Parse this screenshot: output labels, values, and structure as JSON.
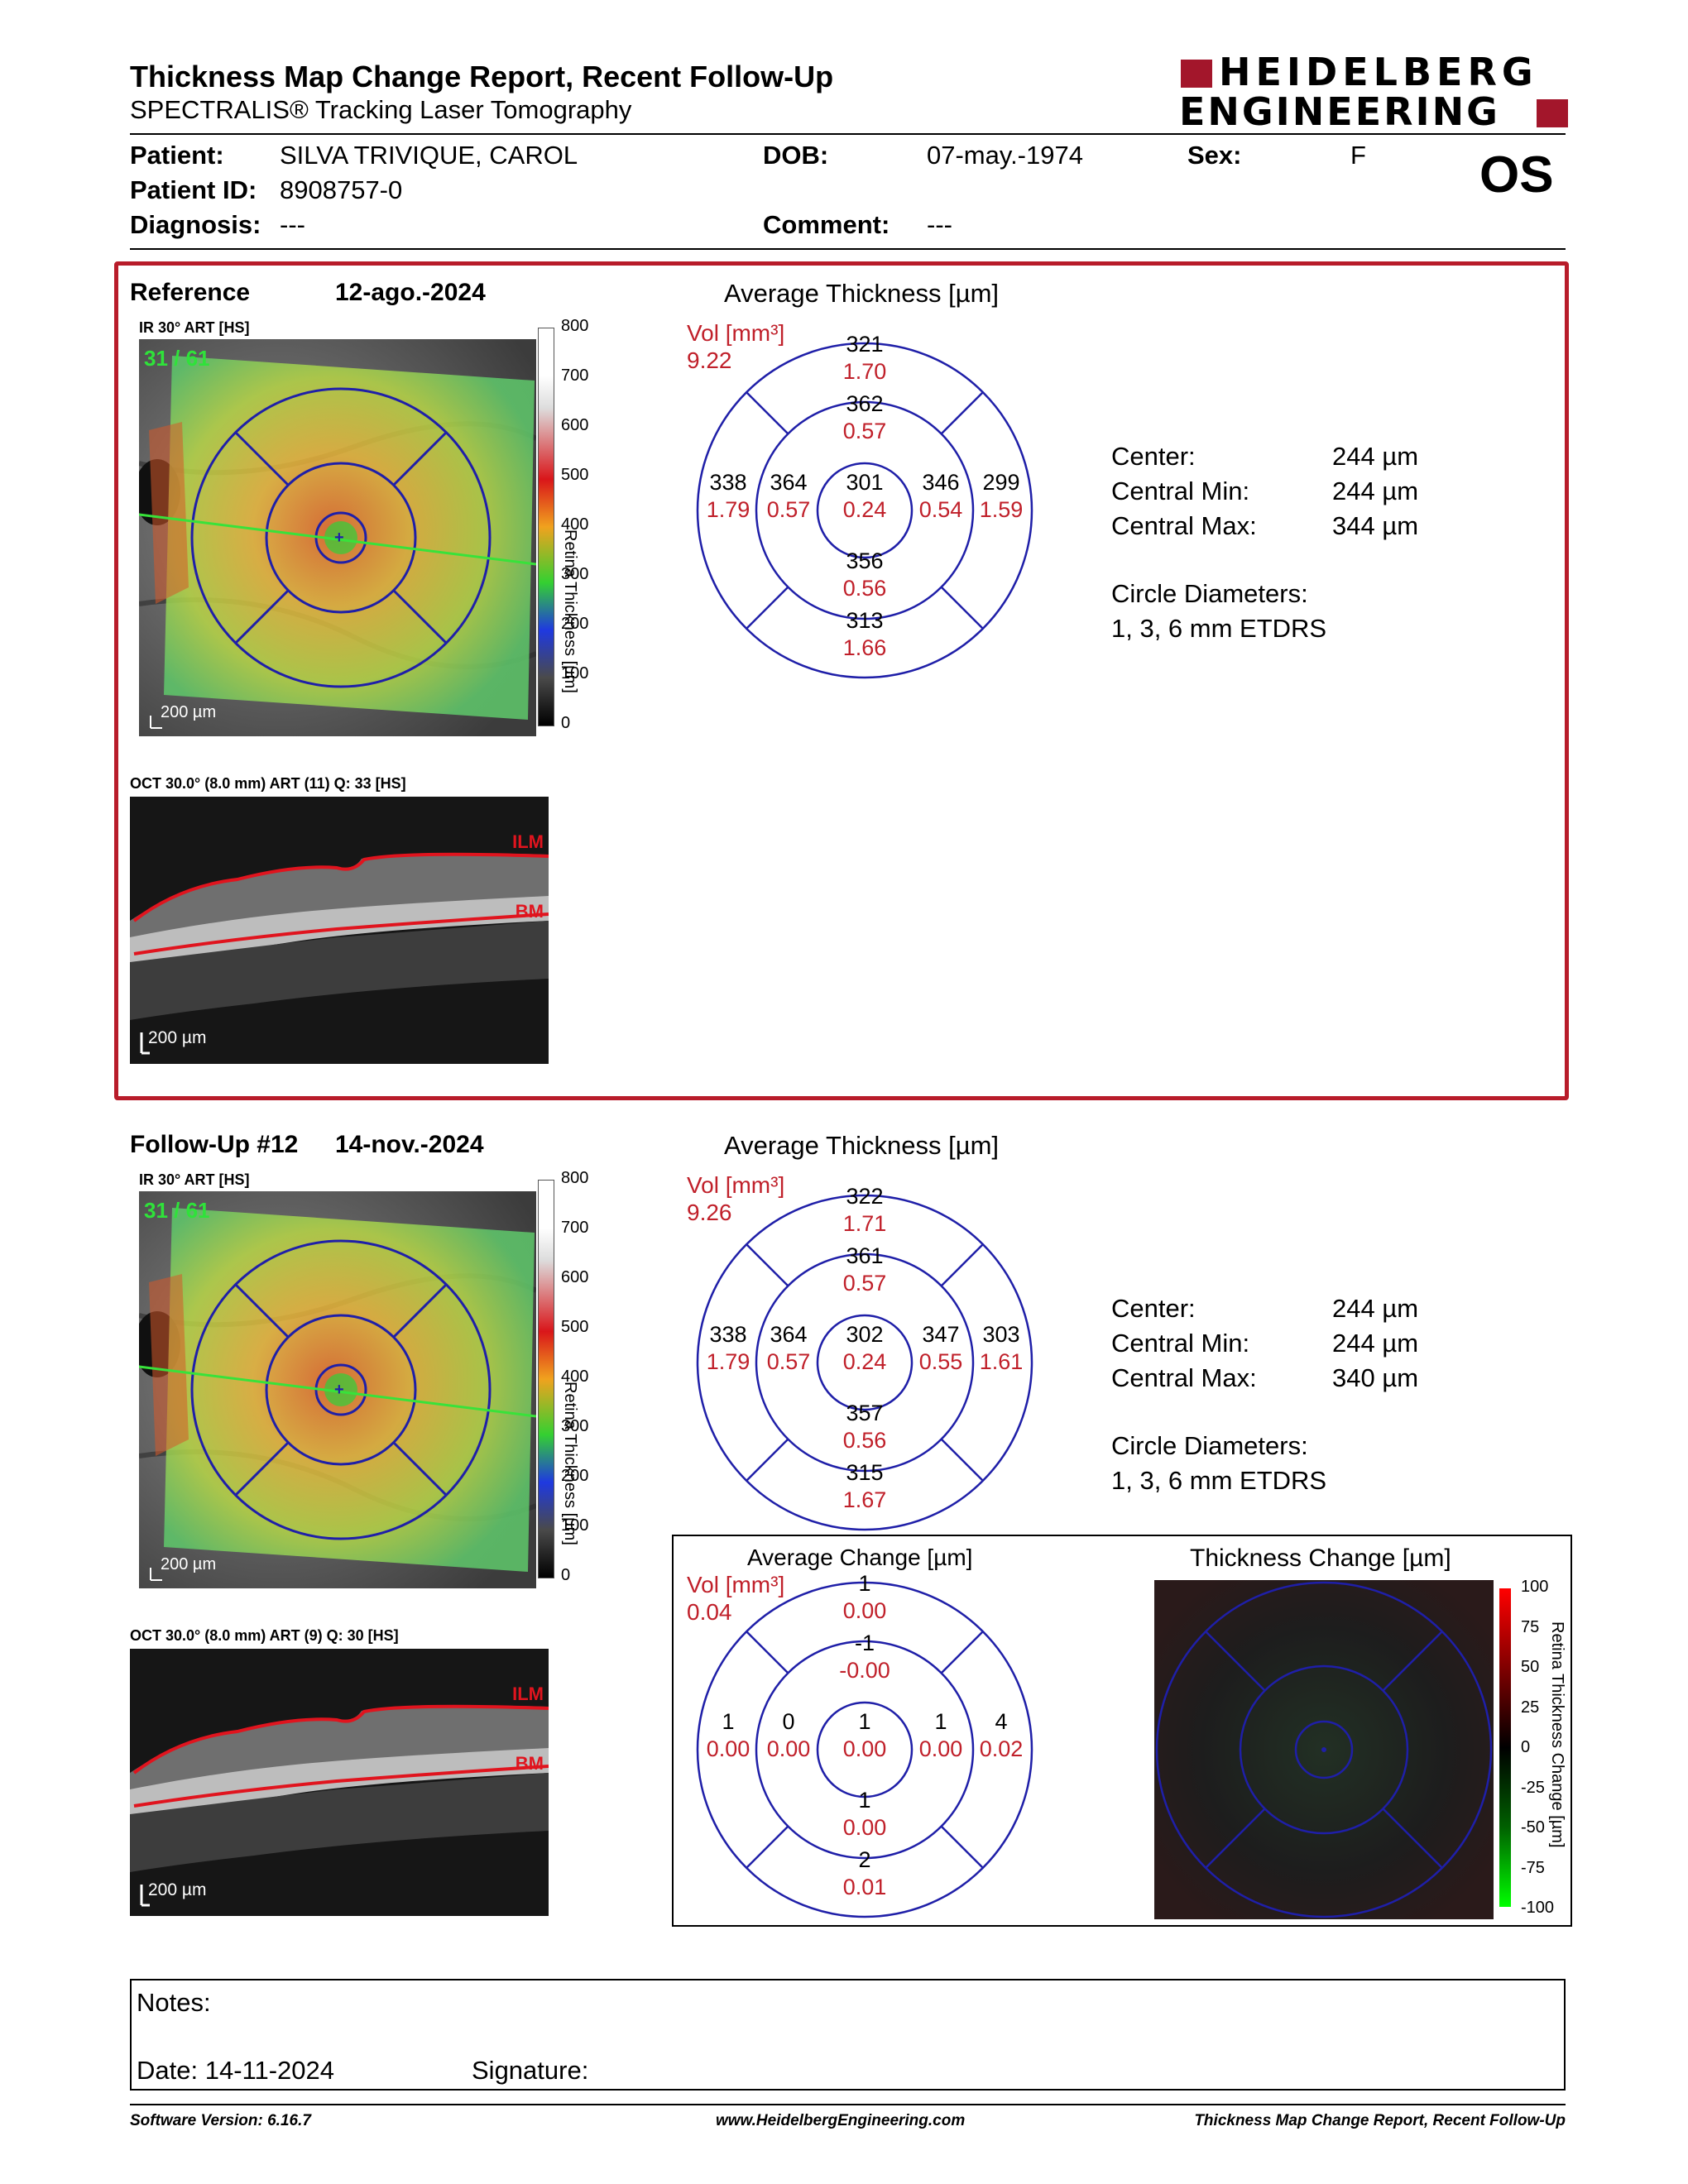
{
  "header": {
    "title": "Thickness Map Change Report, Recent Follow-Up",
    "subtitle": "SPECTRALIS® Tracking Laser Tomography",
    "logo_line1": "HEIDELBERG",
    "logo_line2": "ENGINEERING"
  },
  "patient": {
    "patient_label": "Patient:",
    "patient_value": "SILVA TRIVIQUE, CAROL",
    "id_label": "Patient ID:",
    "id_value": "8908757-0",
    "diagnosis_label": "Diagnosis:",
    "diagnosis_value": "---",
    "dob_label": "DOB:",
    "dob_value": "07-may.-1974",
    "comment_label": "Comment:",
    "comment_value": "---",
    "sex_label": "Sex:",
    "sex_value": "F",
    "eye": "OS"
  },
  "reference": {
    "label": "Reference",
    "date": "12-ago.-2024",
    "ir_caption": "IR 30° ART [HS]",
    "ir_overlay": "31 / 61",
    "scale_bar": "200 µm",
    "oct_caption": "OCT 30.0° (8.0 mm) ART (11) Q: 33 [HS]",
    "oct_scale": "200 µm",
    "avg_title": "Average Thickness [µm]",
    "vol_label": "Vol [mm³]",
    "vol_value": "9.22",
    "sectors": {
      "outer_top": {
        "t": "321",
        "v": "1.70"
      },
      "inner_top": {
        "t": "362",
        "v": "0.57"
      },
      "center": {
        "t": "301",
        "v": "0.24"
      },
      "inner_left": {
        "t": "364",
        "v": "0.57"
      },
      "outer_left": {
        "t": "338",
        "v": "1.79"
      },
      "inner_right": {
        "t": "346",
        "v": "0.54"
      },
      "outer_right": {
        "t": "299",
        "v": "1.59"
      },
      "inner_bottom": {
        "t": "356",
        "v": "0.56"
      },
      "outer_bottom": {
        "t": "313",
        "v": "1.66"
      }
    },
    "stats": {
      "center_label": "Center:",
      "center_value": "244 µm",
      "min_label": "Central Min:",
      "min_value": "244 µm",
      "max_label": "Central Max:",
      "max_value": "344 µm",
      "diam_label": "Circle Diameters:",
      "diam_value": "1, 3, 6 mm ETDRS"
    }
  },
  "followup": {
    "label": "Follow-Up #12",
    "date": "14-nov.-2024",
    "ir_caption": "IR 30° ART [HS]",
    "ir_overlay": "31 / 61",
    "scale_bar": "200 µm",
    "oct_caption": "OCT 30.0° (8.0 mm) ART (9) Q: 30 [HS]",
    "oct_scale": "200 µm",
    "avg_title": "Average Thickness [µm]",
    "vol_label": "Vol [mm³]",
    "vol_value": "9.26",
    "sectors": {
      "outer_top": {
        "t": "322",
        "v": "1.71"
      },
      "inner_top": {
        "t": "361",
        "v": "0.57"
      },
      "center": {
        "t": "302",
        "v": "0.24"
      },
      "inner_left": {
        "t": "364",
        "v": "0.57"
      },
      "outer_left": {
        "t": "338",
        "v": "1.79"
      },
      "inner_right": {
        "t": "347",
        "v": "0.55"
      },
      "outer_right": {
        "t": "303",
        "v": "1.61"
      },
      "inner_bottom": {
        "t": "357",
        "v": "0.56"
      },
      "outer_bottom": {
        "t": "315",
        "v": "1.67"
      }
    },
    "stats": {
      "center_label": "Center:",
      "center_value": "244 µm",
      "min_label": "Central Min:",
      "min_value": "244 µm",
      "max_label": "Central Max:",
      "max_value": "340 µm",
      "diam_label": "Circle Diameters:",
      "diam_value": "1, 3, 6 mm ETDRS"
    }
  },
  "change": {
    "avg_title": "Average Change [µm]",
    "vol_label": "Vol [mm³]",
    "vol_value": "0.04",
    "sectors": {
      "outer_top": {
        "t": "1",
        "v": "0.00"
      },
      "inner_top": {
        "t": "-1",
        "v": "-0.00"
      },
      "center": {
        "t": "1",
        "v": "0.00"
      },
      "inner_left": {
        "t": "0",
        "v": "0.00"
      },
      "outer_left": {
        "t": "1",
        "v": "0.00"
      },
      "inner_right": {
        "t": "1",
        "v": "0.00"
      },
      "outer_right": {
        "t": "4",
        "v": "0.02"
      },
      "inner_bottom": {
        "t": "1",
        "v": "0.00"
      },
      "outer_bottom": {
        "t": "2",
        "v": "0.01"
      }
    },
    "map_title": "Thickness Change [µm]",
    "scale_label": "Retina Thickness Change [µm]",
    "scale_ticks": [
      "100",
      "75",
      "50",
      "25",
      "0",
      "-25",
      "-50",
      "-75",
      "-100"
    ]
  },
  "thickness_scale": {
    "label": "Retina Thickness [µm]",
    "ticks": [
      "800",
      "700",
      "600",
      "500",
      "400",
      "300",
      "200",
      "100",
      "0"
    ]
  },
  "octlabels": {
    "ilm": "ILM",
    "bm": "BM"
  },
  "notes": {
    "notes_label": "Notes:",
    "date_label": "Date: 14-11-2024",
    "signature_label": "Signature:"
  },
  "footer": {
    "left": "Software Version: 6.16.7",
    "center": "www.HeidelbergEngineering.com",
    "right": "Thickness Map Change Report, Recent Follow-Up"
  },
  "colors": {
    "brand_red": "#a3162b",
    "frame_red": "#b81c2a",
    "value_red": "#d01c24",
    "grid_blue": "#1f1fa8"
  }
}
